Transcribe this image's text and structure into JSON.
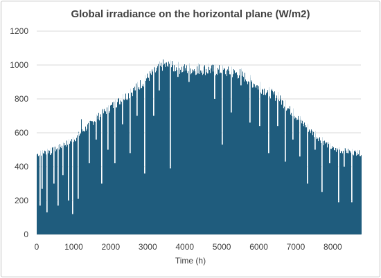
{
  "chart_data": {
    "type": "bar",
    "title": "Global irradiance on the horizontal plane (W/m2)",
    "xlabel": "Time (h)",
    "ylabel": "",
    "xlim": [
      0,
      8760
    ],
    "ylim": [
      0,
      1200
    ],
    "x_ticks": [
      0,
      1000,
      2000,
      3000,
      4000,
      5000,
      6000,
      7000,
      8000
    ],
    "y_ticks": [
      0,
      200,
      400,
      600,
      800,
      1000,
      1200
    ],
    "grid": "horizontal",
    "color": "#1f5c7d",
    "daily_peak_envelope": {
      "x": [
        0,
        500,
        1000,
        1500,
        2000,
        2500,
        3000,
        3400,
        4000,
        4500,
        5000,
        5500,
        6000,
        6500,
        7000,
        7500,
        8000,
        8760
      ],
      "values": [
        490,
        520,
        580,
        690,
        780,
        860,
        960,
        1035,
        1010,
        1010,
        1000,
        980,
        900,
        840,
        720,
        610,
        520,
        495
      ]
    },
    "low_days": [
      {
        "x": 80,
        "value": 170
      },
      {
        "x": 130,
        "value": 270
      },
      {
        "x": 260,
        "value": 130
      },
      {
        "x": 350,
        "value": 470
      },
      {
        "x": 450,
        "value": 300
      },
      {
        "x": 560,
        "value": 170
      },
      {
        "x": 700,
        "value": 350
      },
      {
        "x": 850,
        "value": 200
      },
      {
        "x": 960,
        "value": 120
      },
      {
        "x": 1100,
        "value": 210
      },
      {
        "x": 1200,
        "value": 680
      },
      {
        "x": 1400,
        "value": 420
      },
      {
        "x": 1600,
        "value": 560
      },
      {
        "x": 1750,
        "value": 300
      },
      {
        "x": 1900,
        "value": 500
      },
      {
        "x": 2100,
        "value": 420
      },
      {
        "x": 2300,
        "value": 650
      },
      {
        "x": 2500,
        "value": 480
      },
      {
        "x": 2700,
        "value": 700
      },
      {
        "x": 2900,
        "value": 360
      },
      {
        "x": 3150,
        "value": 700
      },
      {
        "x": 3300,
        "value": 850
      },
      {
        "x": 3600,
        "value": 390
      },
      {
        "x": 3800,
        "value": 930
      },
      {
        "x": 4100,
        "value": 900
      },
      {
        "x": 4350,
        "value": 950
      },
      {
        "x": 4600,
        "value": 950
      },
      {
        "x": 4800,
        "value": 800
      },
      {
        "x": 5000,
        "value": 530
      },
      {
        "x": 5250,
        "value": 720
      },
      {
        "x": 5500,
        "value": 880
      },
      {
        "x": 5750,
        "value": 660
      },
      {
        "x": 6000,
        "value": 640
      },
      {
        "x": 6250,
        "value": 480
      },
      {
        "x": 6500,
        "value": 640
      },
      {
        "x": 6700,
        "value": 430
      },
      {
        "x": 6900,
        "value": 560
      },
      {
        "x": 7100,
        "value": 460
      },
      {
        "x": 7300,
        "value": 300
      },
      {
        "x": 7500,
        "value": 500
      },
      {
        "x": 7700,
        "value": 250
      },
      {
        "x": 7900,
        "value": 420
      },
      {
        "x": 8150,
        "value": 190
      },
      {
        "x": 8300,
        "value": 400
      },
      {
        "x": 8500,
        "value": 190
      },
      {
        "x": 8650,
        "value": 480
      }
    ]
  }
}
